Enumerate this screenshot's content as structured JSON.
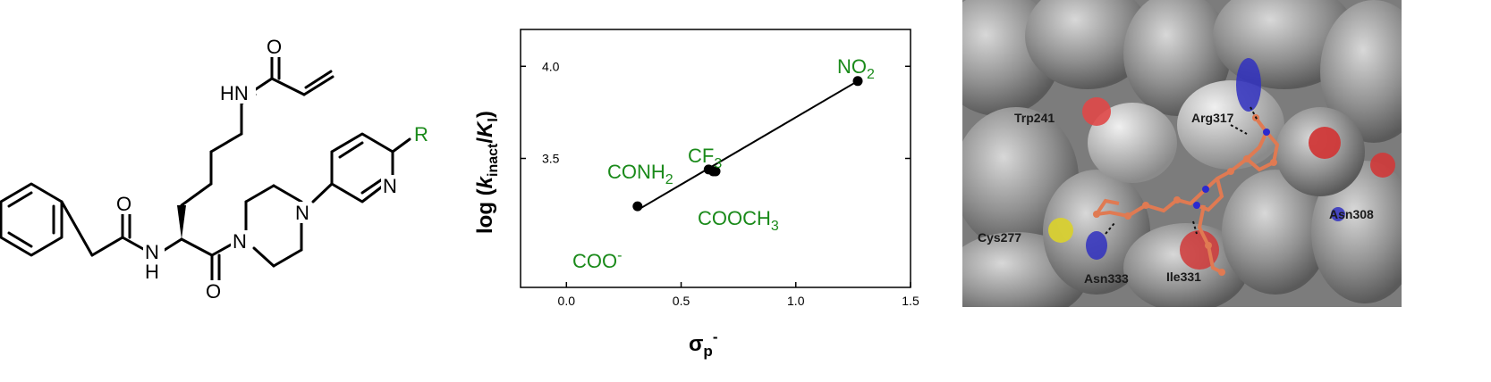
{
  "structure": {
    "atoms": {
      "o_top": "O",
      "hn_top": "HN",
      "r_group": "R",
      "n_pyridine": "N",
      "n_piperazine_top": "N",
      "n_piperazine_bottom": "N",
      "o_amide_left": "O",
      "n_amide_left": "N",
      "h_amide_left": "H",
      "o_bottom": "O"
    }
  },
  "chart_data": {
    "type": "scatter",
    "xlabel": "σp-",
    "ylabel": "log (kinact/KI)",
    "xlim": [
      -0.2,
      1.5
    ],
    "ylim": [
      2.8,
      4.2
    ],
    "xticks": [
      "0.0",
      "0.5",
      "1.0",
      "1.5"
    ],
    "yticks": [
      "3.5",
      "4.0"
    ],
    "points": [
      {
        "x": 0.31,
        "y": 3.24,
        "label": "COO-"
      },
      {
        "x": 0.62,
        "y": 3.44,
        "label": "CONH2"
      },
      {
        "x": 0.65,
        "y": 3.43,
        "label": "COOCH3"
      },
      {
        "x": 0.64,
        "y": 3.43,
        "label": "CF3"
      },
      {
        "x": 1.27,
        "y": 3.92,
        "label": "NO2"
      }
    ],
    "fit_line": {
      "x": [
        0.31,
        1.27
      ],
      "y": [
        3.22,
        3.92
      ]
    },
    "labels": {
      "no2": {
        "main": "NO",
        "sub": "2"
      },
      "cf3": {
        "main": "CF",
        "sub": "3"
      },
      "conh2": {
        "main": "CONH",
        "sub": "2"
      },
      "cooch3": {
        "main": "COOCH",
        "sub": "3"
      },
      "coo": {
        "main": "COO",
        "sup": "-"
      }
    },
    "axis_title_x": {
      "main": "σ",
      "sub": "p",
      "sup": "-"
    },
    "axis_title_y": {
      "pre": "log (",
      "k": "k",
      "k_sub": "inact",
      "slash": "/",
      "K": "K",
      "K_sub": "I",
      "post": ")"
    },
    "annotation_color": "#1a8a1a"
  },
  "docking": {
    "residues": {
      "trp241": "Trp241",
      "arg317": "Arg317",
      "cys277": "Cys277",
      "asn308": "Asn308",
      "asn333": "Asn333",
      "ile331": "Ile331"
    },
    "colors": {
      "surface": "#8a8a8a",
      "ligand": "#e07a52",
      "nitrogen": "#2a2ad0",
      "oxygen": "#e03030",
      "sulfur": "#d8d030"
    }
  }
}
